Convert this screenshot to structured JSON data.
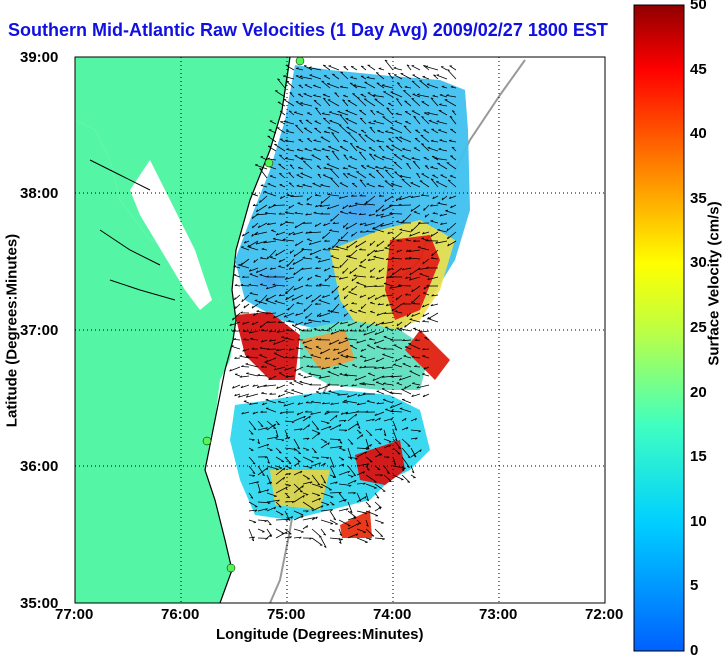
{
  "title": "Southern Mid-Atlantic Raw Velocities (1 Day Avg) 2009/02/27 1800 EST",
  "xlabel": "Longitude (Degrees:Minutes)",
  "ylabel": "Latitude (Degrees:Minutes)",
  "colorbar": {
    "label": "Surface Velocity (cm/s)",
    "min": 0,
    "max": 50,
    "ticks": [
      "0",
      "5",
      "10",
      "15",
      "20",
      "25",
      "30",
      "35",
      "40",
      "45",
      "50"
    ]
  },
  "x_ticks": [
    "77:00",
    "76:00",
    "75:00",
    "74:00",
    "73:00",
    "72:00"
  ],
  "y_ticks": [
    "39:00",
    "38:00",
    "37:00",
    "36:00",
    "35:00"
  ],
  "colors": {
    "land": "#55f5a6",
    "water": "#ffffff",
    "title": "#1010e0"
  },
  "chart_data": {
    "type": "heatmap",
    "title": "Southern Mid-Atlantic Raw Velocities (1 Day Avg) 2009/02/27 1800 EST",
    "xlabel": "Longitude (Degrees:Minutes)",
    "ylabel": "Latitude (Degrees:Minutes)",
    "xlim": [
      -77,
      -72
    ],
    "ylim": [
      35,
      39
    ],
    "grid": true,
    "colorbar_range": [
      0,
      50
    ],
    "colorbar_label": "Surface Velocity (cm/s)"
  }
}
